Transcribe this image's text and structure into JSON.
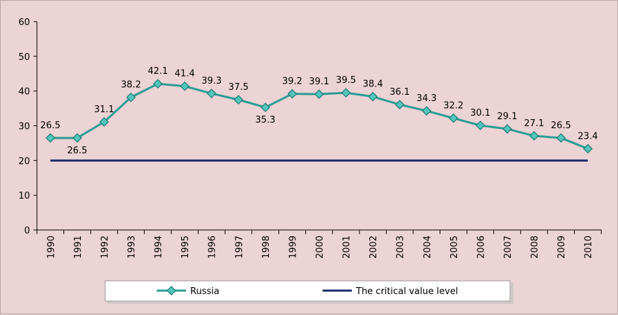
{
  "chart_data": {
    "type": "line",
    "categories": [
      "1990",
      "1991",
      "1992",
      "1993",
      "1994",
      "1995",
      "1996",
      "1997",
      "1998",
      "1999",
      "2000",
      "2001",
      "2002",
      "2003",
      "2004",
      "2005",
      "2006",
      "2007",
      "2008",
      "2009",
      "2010"
    ],
    "series": [
      {
        "name": "Russia",
        "values": [
          26.5,
          26.5,
          31.1,
          38.2,
          42.1,
          41.4,
          39.3,
          37.5,
          35.3,
          39.2,
          39.1,
          39.5,
          38.4,
          36.1,
          34.3,
          32.2,
          30.1,
          29.1,
          27.1,
          26.5,
          23.4
        ],
        "labels": [
          "26.5",
          "26.5",
          "31.1",
          "38.2",
          "42.1",
          "41.4",
          "39.3",
          "37.5",
          "35.3",
          "39.2",
          "39.1",
          "39.5",
          "38.4",
          "36.1",
          "34.3",
          "32.2",
          "30.1",
          "29.1",
          "27.1",
          "26.5",
          "23.4"
        ],
        "color": "#2a9d95",
        "marker_fill": "#52c6bd",
        "marker_stroke": "#1d7a73"
      },
      {
        "name": "The critical value level",
        "values": [
          20,
          20,
          20,
          20,
          20,
          20,
          20,
          20,
          20,
          20,
          20,
          20,
          20,
          20,
          20,
          20,
          20,
          20,
          20,
          20,
          20
        ],
        "color": "#1c2d6b"
      }
    ],
    "ylim": [
      0,
      60
    ],
    "yticks": [
      0,
      10,
      20,
      30,
      40,
      50,
      60
    ],
    "ytick_labels": [
      "0",
      "10",
      "20",
      "30",
      "40",
      "50",
      "60"
    ],
    "title": "",
    "xlabel": "",
    "ylabel": "",
    "legend_position": "bottom"
  },
  "legend": {
    "russia_label": "Russia",
    "critical_label": "The critical value level"
  }
}
